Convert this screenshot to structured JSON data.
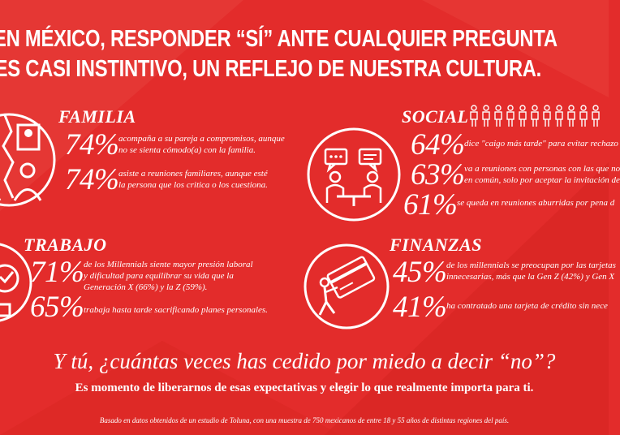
{
  "headline": {
    "line1": "EN MÉXICO, RESPONDER “SÍ” ANTE CUALQUIER PREGUNTA",
    "line2": "ES CASI INSTINTIVO, UN REFLEJO DE NUESTRA CULTURA."
  },
  "familia": {
    "title": "FAMILIA",
    "icon": "family-icon",
    "stats": [
      {
        "value": "74%",
        "line1": "acompaña a su pareja a  compromisos, aunque",
        "line2": "no se sienta cómodo(a) con la familia."
      },
      {
        "value": "74%",
        "line1": "asiste a reuniones familiares, aunque esté",
        "line2": "la persona que los critica o los cuestiona."
      }
    ]
  },
  "social": {
    "title": "SOCIAL",
    "icon": "meeting-icon",
    "stats": [
      {
        "value": "64%",
        "line1": "dice \"caigo más tarde\" para evitar rechazo"
      },
      {
        "value": "63%",
        "line1": "va a reuniones con personas con las que no",
        "line2": "en común, solo por aceptar la invitación de"
      },
      {
        "value": "61%",
        "line1": "se queda en reuniones aburridas por pena d"
      }
    ]
  },
  "trabajo": {
    "title": "TRABAJO",
    "icon": "work-icon",
    "stats": [
      {
        "value": "71%",
        "line1": "de los Millennials siente mayor presión laboral",
        "line2": "y dificultad para equilibrar su vida que la",
        "line3": "Generación X (66%) y la Z (59%)."
      },
      {
        "value": "65%",
        "line1": "trabaja hasta tarde sacrificando planes personales."
      }
    ]
  },
  "finanzas": {
    "title": "FINANZAS",
    "icon": "credit-card-icon",
    "stats": [
      {
        "value": "45%",
        "line1": "de los millennials se preocupan por las tarjetas",
        "line2": "innecesarias, más que la Gen Z (42%) y Gen X"
      },
      {
        "value": "41%",
        "line1": "ha contratado una tarjeta de crédito sin nece"
      }
    ]
  },
  "cta": {
    "question": "Y tú, ¿cuántas veces has cedido por miedo a decir “no”?",
    "subtitle": "Es momento de liberarnos de esas expectativas y elegir lo que realmente importa para ti."
  },
  "footnote": "Basado en datos obtenidos de un estudio de Toluna, con una muestra de 750 mexicanos de entre 18 y 55 años de distintas regiones del país.",
  "colors": {
    "background": "#e32c2b",
    "text": "#ffffff",
    "accent_dark": "#c81f22"
  }
}
